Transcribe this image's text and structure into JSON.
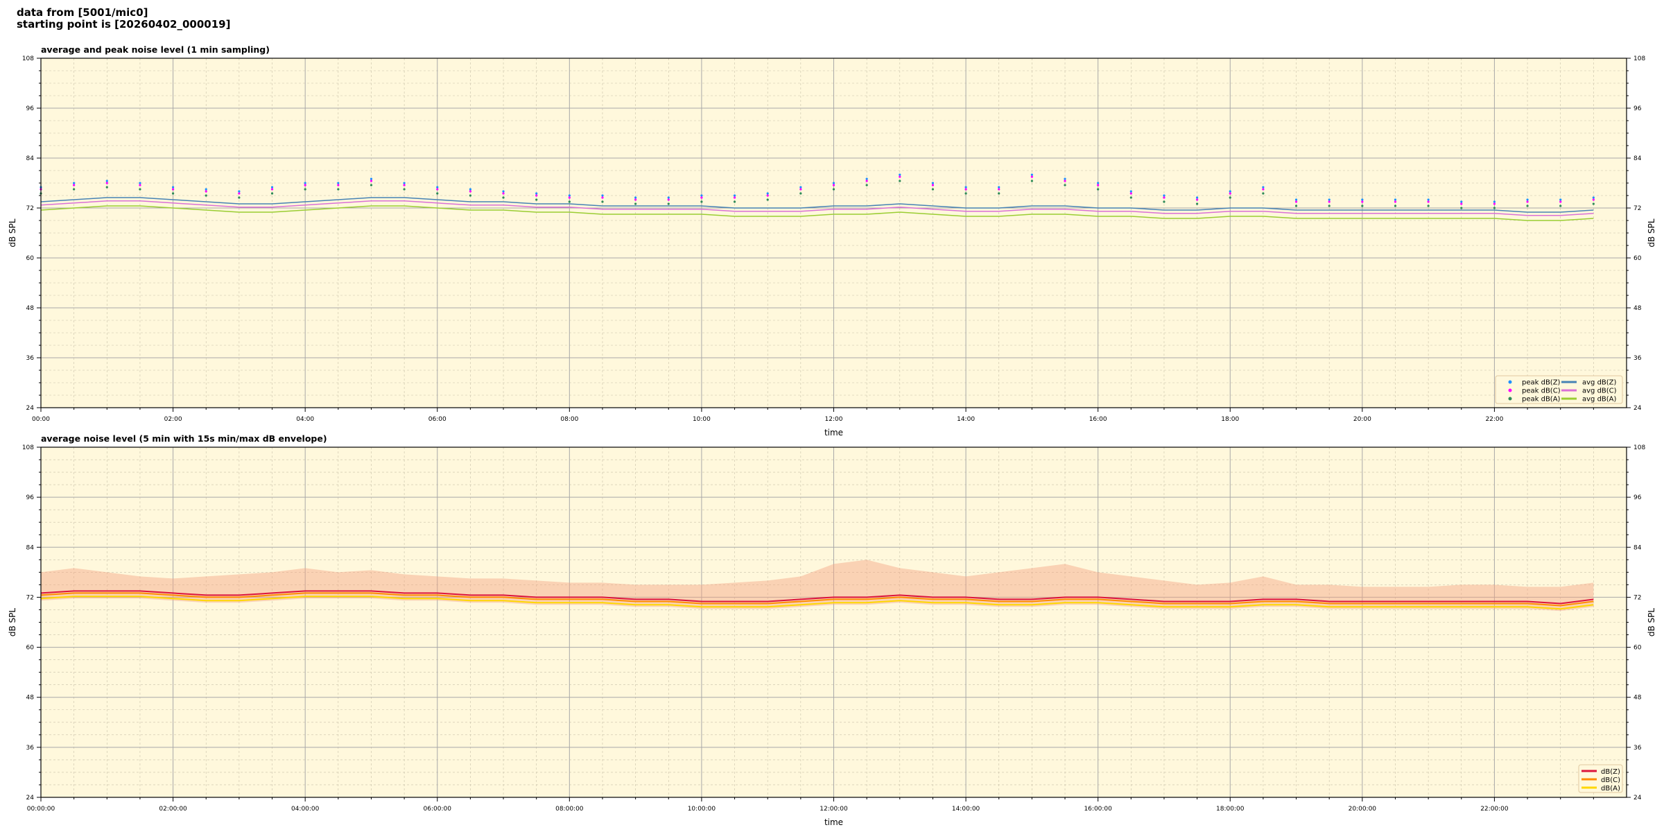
{
  "header": {
    "line1": "data from [5001/mic0]",
    "line2": "starting point is [20260402_000019]"
  },
  "chart_data": [
    {
      "type": "line",
      "title": "average and peak noise level (1 min sampling)",
      "xlabel": "time",
      "ylabel": "dB SPL",
      "ylim": [
        24,
        108
      ],
      "yticks": [
        24,
        36,
        48,
        60,
        72,
        84,
        96,
        108
      ],
      "xlim_hours": [
        0,
        24
      ],
      "xtick_labels": [
        "00:00",
        "02:00",
        "04:00",
        "06:00",
        "08:00",
        "10:00",
        "12:00",
        "14:00",
        "16:00",
        "18:00",
        "20:00",
        "22:00"
      ],
      "x_step_minutes": 30,
      "grid": true,
      "background": "#fff8dc",
      "legend_placement": "lower-right",
      "series": [
        {
          "name": "peak dB(Z)",
          "kind": "scatter",
          "color": "#1e90ff",
          "values": [
            77,
            78,
            78.5,
            78,
            77,
            76.5,
            76,
            77,
            78,
            78,
            79,
            78,
            77,
            76.5,
            76,
            75.5,
            75,
            75,
            74.5,
            74.5,
            75,
            75,
            75.5,
            77,
            78,
            79,
            80,
            78,
            77,
            77,
            80,
            79,
            78,
            76,
            75,
            74.5,
            76,
            77,
            74,
            74,
            74,
            74,
            74,
            73.5,
            73.5,
            74,
            74,
            74.5
          ]
        },
        {
          "name": "peak dB(C)",
          "kind": "scatter",
          "color": "#ff00ff",
          "values": [
            76.5,
            77.5,
            78,
            77.5,
            76.5,
            76,
            75.5,
            76.5,
            77.5,
            77.5,
            78.5,
            77.5,
            76.5,
            76,
            75.5,
            75,
            74.5,
            74.5,
            74,
            74,
            74.5,
            74.5,
            75,
            76.5,
            77.5,
            78.5,
            79.5,
            77.5,
            76.5,
            76.5,
            79.5,
            78.5,
            77.5,
            75.5,
            74.5,
            74,
            75.5,
            76.5,
            73.5,
            73.5,
            73.5,
            73.5,
            73.5,
            73,
            73,
            73.5,
            73.5,
            74
          ]
        },
        {
          "name": "peak dB(A)",
          "kind": "scatter",
          "color": "#2e8b57",
          "values": [
            75.5,
            76.5,
            77,
            76.5,
            75.5,
            75,
            74.5,
            75.5,
            76.5,
            76.5,
            77.5,
            76.5,
            75.5,
            75,
            74.5,
            74,
            73.5,
            73.5,
            73,
            73,
            73.5,
            73.5,
            74,
            75.5,
            76.5,
            77.5,
            78.5,
            76.5,
            75.5,
            75.5,
            78.5,
            77.5,
            76.5,
            74.5,
            73.5,
            73,
            74.5,
            75.5,
            72.5,
            72.5,
            72.5,
            72.5,
            72.5,
            72,
            72,
            72.5,
            72.5,
            73
          ]
        },
        {
          "name": "avg dB(Z)",
          "kind": "line",
          "color": "#4682b4",
          "values": [
            73.5,
            74,
            74.5,
            74.5,
            74,
            73.5,
            73,
            73,
            73.5,
            74,
            74.5,
            74.5,
            74,
            73.5,
            73.5,
            73,
            73,
            72.5,
            72.5,
            72.5,
            72.5,
            72,
            72,
            72,
            72.5,
            72.5,
            73,
            72.5,
            72,
            72,
            72.5,
            72.5,
            72,
            72,
            71.5,
            71.5,
            72,
            72,
            71.5,
            71.5,
            71.5,
            71.5,
            71.5,
            71.5,
            71.5,
            71,
            71,
            71.5
          ]
        },
        {
          "name": "avg dB(C)",
          "kind": "line",
          "color": "#da70d6",
          "values": [
            72.7,
            73.2,
            73.7,
            73.7,
            73.2,
            72.7,
            72.2,
            72.2,
            72.7,
            73.2,
            73.7,
            73.7,
            73.2,
            72.7,
            72.7,
            72.2,
            72.2,
            71.7,
            71.7,
            71.7,
            71.7,
            71.2,
            71.2,
            71.2,
            71.7,
            71.7,
            72.2,
            71.7,
            71.2,
            71.2,
            71.7,
            71.7,
            71.2,
            71.2,
            70.7,
            70.7,
            71.2,
            71.2,
            70.7,
            70.7,
            70.7,
            70.7,
            70.7,
            70.7,
            70.7,
            70.2,
            70.2,
            70.7
          ]
        },
        {
          "name": "avg dB(A)",
          "kind": "line",
          "color": "#9acd32",
          "values": [
            71.5,
            72,
            72.5,
            72.5,
            72,
            71.5,
            71,
            71,
            71.5,
            72,
            72.5,
            72.5,
            72,
            71.5,
            71.5,
            71,
            71,
            70.5,
            70.5,
            70.5,
            70.5,
            70,
            70,
            70,
            70.5,
            70.5,
            71,
            70.5,
            70,
            70,
            70.5,
            70.5,
            70,
            70,
            69.5,
            69.5,
            70,
            70,
            69.5,
            69.5,
            69.5,
            69.5,
            69.5,
            69.5,
            69.5,
            69,
            69,
            69.5
          ]
        }
      ]
    },
    {
      "type": "line",
      "title": "average noise level (5 min with 15s min/max dB envelope)",
      "xlabel": "time",
      "ylabel": "dB SPL",
      "ylim": [
        24,
        108
      ],
      "yticks": [
        24,
        36,
        48,
        60,
        72,
        84,
        96,
        108
      ],
      "xlim_hours": [
        0,
        24
      ],
      "xtick_labels": [
        "00:00:00",
        "02:00:00",
        "04:00:00",
        "06:00:00",
        "08:00:00",
        "10:00:00",
        "12:00:00",
        "14:00:00",
        "16:00:00",
        "18:00:00",
        "20:00:00",
        "22:00:00"
      ],
      "x_step_minutes": 30,
      "grid": true,
      "background": "#fff8dc",
      "legend_placement": "lower-right",
      "envelope": {
        "color": "#f4a582",
        "max": [
          78,
          79,
          78,
          77,
          76.5,
          77,
          77.5,
          78,
          79,
          78,
          78.5,
          77.5,
          77,
          76.5,
          76.5,
          76,
          75.5,
          75.5,
          75,
          75,
          75,
          75.5,
          76,
          77,
          80,
          81,
          79,
          78,
          77,
          78,
          79,
          80,
          78,
          77,
          76,
          75,
          75.5,
          77,
          75,
          75,
          74.5,
          74.5,
          74.5,
          75,
          75,
          74.5,
          74.5,
          75.5
        ]
      },
      "series": [
        {
          "name": "dB(Z)",
          "color": "#dc143c",
          "values": [
            73,
            73.5,
            73.5,
            73.5,
            73,
            72.5,
            72.5,
            73,
            73.5,
            73.5,
            73.5,
            73,
            73,
            72.5,
            72.5,
            72,
            72,
            72,
            71.5,
            71.5,
            71,
            71,
            71,
            71.5,
            72,
            72,
            72.5,
            72,
            72,
            71.5,
            71.5,
            72,
            72,
            71.5,
            71,
            71,
            71,
            71.5,
            71.5,
            71,
            71,
            71,
            71,
            71,
            71,
            71,
            70.5,
            71.5
          ]
        },
        {
          "name": "dB(C)",
          "color": "#ff8c00",
          "values": [
            72.5,
            73,
            73,
            73,
            72.5,
            72,
            72,
            72.5,
            73,
            73,
            73,
            72.5,
            72.5,
            72,
            72,
            71.5,
            71.5,
            71.5,
            71,
            71,
            70.5,
            70.5,
            70.5,
            71,
            71.5,
            71.5,
            72,
            71.5,
            71.5,
            71,
            71,
            71.5,
            71.5,
            71,
            70.5,
            70.5,
            70.5,
            71,
            71,
            70.5,
            70.5,
            70.5,
            70.5,
            70.5,
            70.5,
            70.5,
            70,
            71
          ]
        },
        {
          "name": "dB(A)",
          "color": "#ffd700",
          "values": [
            71.7,
            72.2,
            72.2,
            72.2,
            71.7,
            71.2,
            71.2,
            71.7,
            72.2,
            72.2,
            72.2,
            71.7,
            71.7,
            71.2,
            71.2,
            70.7,
            70.7,
            70.7,
            70.2,
            70.2,
            69.7,
            69.7,
            69.7,
            70.2,
            70.7,
            70.7,
            71.2,
            70.7,
            70.7,
            70.2,
            70.2,
            70.7,
            70.7,
            70.2,
            69.7,
            69.7,
            69.7,
            70.2,
            70.2,
            69.7,
            69.7,
            69.7,
            69.7,
            69.7,
            69.7,
            69.7,
            69.2,
            70.2
          ]
        }
      ]
    }
  ]
}
